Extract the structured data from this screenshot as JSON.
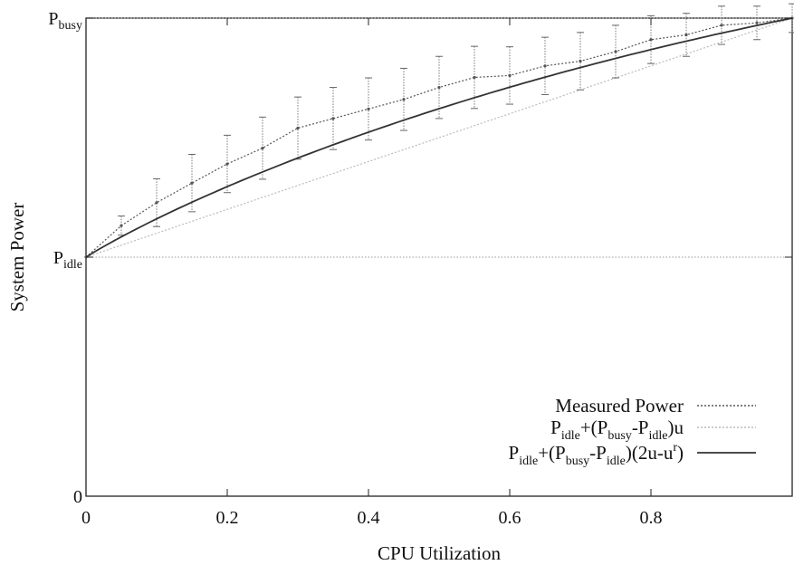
{
  "chart_data": {
    "type": "line",
    "xlabel": "CPU Utilization",
    "ylabel": "System Power",
    "xlim": [
      0,
      1
    ],
    "ylim": [
      0,
      1
    ],
    "x_ticks": [
      {
        "value": 0,
        "label": "0"
      },
      {
        "value": 0.2,
        "label": "0.2"
      },
      {
        "value": 0.4,
        "label": "0.4"
      },
      {
        "value": 0.6,
        "label": "0.6"
      },
      {
        "value": 0.8,
        "label": "0.8"
      }
    ],
    "y_ticks": [
      {
        "value": 0,
        "label": "0"
      },
      {
        "value": 0.5,
        "label": "P",
        "sub": "idle"
      },
      {
        "value": 1.0,
        "label": "P",
        "sub": "busy"
      }
    ],
    "p_idle": 0.5,
    "p_busy": 1.0,
    "r": 1.4,
    "grid": false,
    "legend_position": "bottom-right",
    "series": [
      {
        "name": "Measured Power",
        "style": "dotted-with-errorbars",
        "x": [
          0,
          0.05,
          0.1,
          0.15,
          0.2,
          0.25,
          0.3,
          0.35,
          0.4,
          0.45,
          0.5,
          0.55,
          0.6,
          0.65,
          0.7,
          0.75,
          0.8,
          0.85,
          0.9,
          0.95,
          1.0
        ],
        "y": [
          0.5,
          0.566,
          0.614,
          0.655,
          0.695,
          0.728,
          0.77,
          0.79,
          0.81,
          0.83,
          0.855,
          0.876,
          0.88,
          0.9,
          0.91,
          0.93,
          0.955,
          0.965,
          0.985,
          0.99,
          1.0
        ],
        "error": [
          0.0,
          0.02,
          0.05,
          0.06,
          0.06,
          0.065,
          0.065,
          0.065,
          0.065,
          0.065,
          0.065,
          0.065,
          0.06,
          0.06,
          0.06,
          0.055,
          0.05,
          0.045,
          0.04,
          0.035,
          0.03
        ]
      },
      {
        "name": "Pidle+(Pbusy-Pidle)u",
        "label_parts": [
          "P",
          "idle",
          "+(P",
          "busy",
          "-P",
          "idle",
          ")u"
        ],
        "style": "light-dotted",
        "formula": "linear",
        "color": "#bbbbbb"
      },
      {
        "name": "Pidle+(Pbusy-Pidle)(2u-u^r)",
        "label_parts": [
          "P",
          "idle",
          "+(P",
          "busy",
          "-P",
          "idle",
          ")(2u-u",
          "r",
          ")"
        ],
        "style": "solid",
        "formula": "2u-u^r",
        "color": "#333333"
      }
    ]
  }
}
